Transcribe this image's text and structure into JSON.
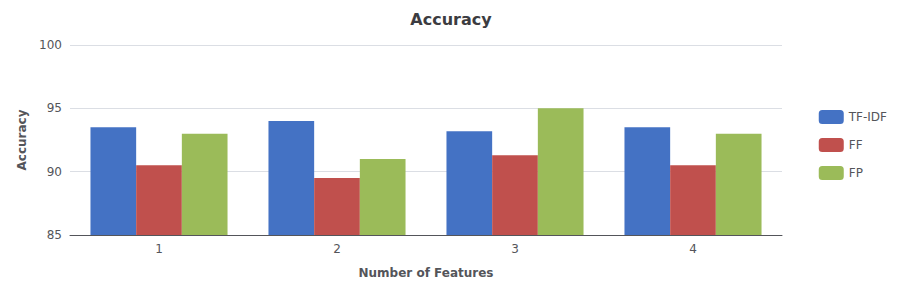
{
  "chart_data": {
    "type": "bar",
    "title": "Accuracy",
    "xlabel": "Number of Features",
    "ylabel": "Accuracy",
    "categories": [
      1,
      2,
      3,
      4
    ],
    "series": [
      {
        "name": "TF-IDF",
        "color": "#4472C4",
        "values": [
          93.5,
          94.0,
          93.2,
          93.5
        ]
      },
      {
        "name": "FF",
        "color": "#C0504D",
        "values": [
          90.5,
          89.5,
          91.3,
          90.5
        ]
      },
      {
        "name": "FP",
        "color": "#9BBB59",
        "values": [
          93.0,
          91.0,
          95.0,
          93.0
        ]
      }
    ],
    "ylim": [
      85,
      100
    ],
    "yticks": [
      85,
      90,
      95,
      100
    ],
    "grid": true,
    "legend": "right"
  }
}
